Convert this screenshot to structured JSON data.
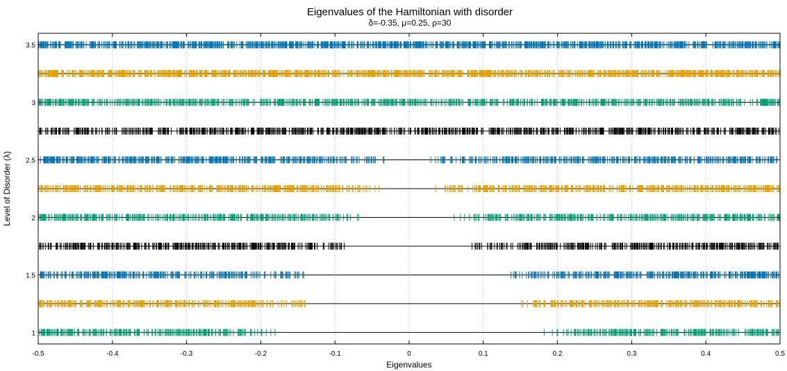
{
  "chart_data": {
    "type": "scatter",
    "title": "Eigenvalues of the Hamiltonian with disorder",
    "subtitle": "δ=-0.35, μ=0.25, ρ=30",
    "xlabel": "Eigenvalues",
    "ylabel": "Level of Disorder (λ)",
    "xlim": [
      -0.5,
      0.5
    ],
    "ylim": [
      0.9,
      3.6
    ],
    "x_ticks": [
      "-0.5",
      "-0.4",
      "-0.3",
      "-0.2",
      "-0.1",
      "0",
      "0.1",
      "0.2",
      "0.3",
      "0.4",
      "0.5"
    ],
    "x_tick_values": [
      -0.5,
      -0.4,
      -0.3,
      -0.2,
      -0.1,
      0,
      0.1,
      0.2,
      0.3,
      0.4,
      0.5
    ],
    "y_ticks": [
      "1",
      "1.5",
      "2",
      "2.5",
      "3",
      "3.5"
    ],
    "y_tick_values": [
      1,
      1.5,
      2,
      2.5,
      3,
      3.5
    ],
    "grid": "vertical dotted",
    "colors": [
      "#009e73",
      "#e69f00",
      "#0072b2",
      "#000000"
    ],
    "series": [
      {
        "lambda": 1.0,
        "color": "#009e73",
        "gap_edges": [
          -0.18,
          0.18
        ],
        "density": "dense"
      },
      {
        "lambda": 1.25,
        "color": "#e69f00",
        "gap_edges": [
          -0.14,
          0.14
        ],
        "density": "dense"
      },
      {
        "lambda": 1.5,
        "color": "#0072b2",
        "gap_edges": [
          -0.13,
          0.13
        ],
        "density": "dense"
      },
      {
        "lambda": 1.75,
        "color": "#000000",
        "gap_edges": [
          -0.085,
          0.08
        ],
        "density": "dense"
      },
      {
        "lambda": 2.0,
        "color": "#009e73",
        "gap_edges": [
          -0.06,
          0.06
        ],
        "density": "dense"
      },
      {
        "lambda": 2.25,
        "color": "#e69f00",
        "gap_edges": [
          -0.04,
          0.035
        ],
        "density": "dense"
      },
      {
        "lambda": 2.5,
        "color": "#0072b2",
        "gap_edges": [
          -0.03,
          0.025
        ],
        "density": "dense"
      },
      {
        "lambda": 2.75,
        "color": "#000000",
        "gap_edges": [
          0,
          0
        ],
        "density": "dense"
      },
      {
        "lambda": 3.0,
        "color": "#009e73",
        "gap_edges": [
          0,
          0
        ],
        "density": "dense"
      },
      {
        "lambda": 3.25,
        "color": "#e69f00",
        "gap_edges": [
          0,
          0
        ],
        "density": "very dense"
      },
      {
        "lambda": 3.5,
        "color": "#0072b2",
        "gap_edges": [
          0,
          0
        ],
        "density": "very dense"
      }
    ]
  }
}
